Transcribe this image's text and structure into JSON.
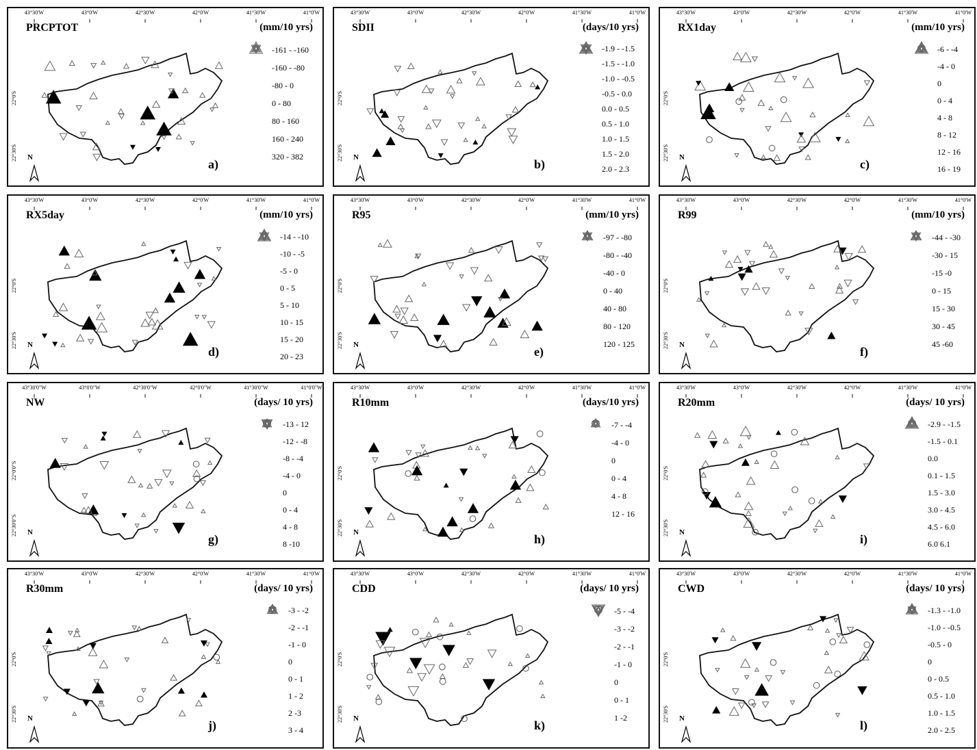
{
  "lon_labels": [
    "43°30'W",
    "43°0'W",
    "42°30'W",
    "42°0'W",
    "41°30'W",
    "41°0'W"
  ],
  "lon_labels_g": [
    "43°30'0\"W",
    "43°0'0\"W",
    "42°30'0\"W",
    "42°0'0\"W",
    "41°30'0\"W",
    "41°0'0\"W"
  ],
  "lat_labels": [
    "22°0'S",
    "22°30'S"
  ],
  "lat_labels_g": [
    "22°0'0\"S",
    "22°30'0\"S"
  ],
  "north_label": "N",
  "panels": [
    {
      "id": "a",
      "title": "PRCPTOT",
      "units": "(mm/10 yrs)",
      "label": "a)",
      "legend": [
        {
          "dir": "down",
          "size": 7,
          "text": "-161 - -160"
        },
        {
          "dir": "down",
          "size": 5,
          "text": "-160 - -80"
        },
        {
          "dir": "down",
          "size": 3,
          "text": "-80 - 0"
        },
        {
          "dir": "up",
          "size": 3,
          "text": "0 - 80"
        },
        {
          "dir": "up",
          "size": 5,
          "text": "80 - 160"
        },
        {
          "dir": "up",
          "size": 7,
          "text": "160 - 240"
        },
        {
          "dir": "up",
          "size": 10,
          "text": "320 - 382"
        }
      ]
    },
    {
      "id": "b",
      "title": "SDII",
      "units": "(days/10 yrs)",
      "label": "b)",
      "legend": [
        {
          "dir": "down",
          "size": 8,
          "text": "-1.9 - -1.5"
        },
        {
          "dir": "down",
          "size": 6,
          "text": "-1.5 - -1.0"
        },
        {
          "dir": "down",
          "size": 5,
          "text": "-1.0 - -0.5"
        },
        {
          "dir": "down",
          "size": 3,
          "text": "-0.5 - 0.0"
        },
        {
          "dir": "up",
          "size": 3,
          "text": "0.0 - 0.5"
        },
        {
          "dir": "up",
          "size": 5,
          "text": "0.5 - 1.0"
        },
        {
          "dir": "up",
          "size": 6,
          "text": "1.0 - 1.5"
        },
        {
          "dir": "up",
          "size": 8,
          "text": "1.5 - 2.0"
        },
        {
          "dir": "up",
          "size": 10,
          "text": "2.0 - 2.3"
        }
      ]
    },
    {
      "id": "c",
      "title": "RX1day",
      "units": "(mm/10 yrs)",
      "label": "c)",
      "legend": [
        {
          "dir": "down",
          "size": 5,
          "text": "-6 - -4"
        },
        {
          "dir": "down",
          "size": 3,
          "text": "-4 - 0"
        },
        {
          "dir": "zero",
          "size": 6,
          "text": "0"
        },
        {
          "dir": "up",
          "size": 3,
          "text": "0 - 4"
        },
        {
          "dir": "up",
          "size": 5,
          "text": "4 - 8"
        },
        {
          "dir": "up",
          "size": 6,
          "text": "8 - 12"
        },
        {
          "dir": "up",
          "size": 8,
          "text": "12 - 16"
        },
        {
          "dir": "up",
          "size": 10,
          "text": "16 - 19"
        }
      ]
    },
    {
      "id": "d",
      "title": "RX5day",
      "units": "(mm/10 yrs)",
      "label": "d)",
      "legend": [
        {
          "dir": "down",
          "size": 7,
          "text": "-14 - -10"
        },
        {
          "dir": "down",
          "size": 5,
          "text": "-10 - -5"
        },
        {
          "dir": "down",
          "size": 3,
          "text": "-5 - 0"
        },
        {
          "dir": "up",
          "size": 3,
          "text": "0 - 5"
        },
        {
          "dir": "up",
          "size": 5,
          "text": "5 - 10"
        },
        {
          "dir": "up",
          "size": 7,
          "text": "10 - 15"
        },
        {
          "dir": "up",
          "size": 8,
          "text": "15 - 20"
        },
        {
          "dir": "up",
          "size": 10,
          "text": "20 - 23"
        }
      ]
    },
    {
      "id": "e",
      "title": "R95",
      "units": "(mm/10 yrs)",
      "label": "e)",
      "legend": [
        {
          "dir": "down",
          "size": 7,
          "text": "-97 - -80"
        },
        {
          "dir": "down",
          "size": 5,
          "text": "-80 - -40"
        },
        {
          "dir": "down",
          "size": 3,
          "text": "-40 - 0"
        },
        {
          "dir": "up",
          "size": 3,
          "text": "0 - 40"
        },
        {
          "dir": "up",
          "size": 5,
          "text": "40 - 80"
        },
        {
          "dir": "up",
          "size": 7,
          "text": "80 - 120"
        },
        {
          "dir": "up",
          "size": 8,
          "text": "120 - 125"
        }
      ]
    },
    {
      "id": "f",
      "title": "R99",
      "units": "(mm/10 yrs)",
      "label": "f)",
      "legend": [
        {
          "dir": "down",
          "size": 7,
          "text": "-44 - -30"
        },
        {
          "dir": "down",
          "size": 5,
          "text": "-30 - 15"
        },
        {
          "dir": "down",
          "size": 3,
          "text": "-15 -0"
        },
        {
          "dir": "up",
          "size": 3,
          "text": "0 - 15"
        },
        {
          "dir": "up",
          "size": 5,
          "text": "15 - 30"
        },
        {
          "dir": "up",
          "size": 7,
          "text": "30 - 45"
        },
        {
          "dir": "up",
          "size": 8,
          "text": "45 -60"
        }
      ]
    },
    {
      "id": "g",
      "title": "NW",
      "units": "(days/ 10 yrs)",
      "label": "g)",
      "legend": [
        {
          "dir": "down",
          "size": 8,
          "text": "-13 - 12"
        },
        {
          "dir": "down",
          "size": 7,
          "text": "-12 - -8"
        },
        {
          "dir": "down",
          "size": 5,
          "text": "-8 - -4"
        },
        {
          "dir": "down",
          "size": 3,
          "text": "-4 - 0"
        },
        {
          "dir": "zero",
          "size": 6,
          "text": "0"
        },
        {
          "dir": "up",
          "size": 3,
          "text": "0 - 4"
        },
        {
          "dir": "up",
          "size": 5,
          "text": "4 - 8"
        },
        {
          "dir": "up",
          "size": 7,
          "text": "8 -10"
        }
      ]
    },
    {
      "id": "h",
      "title": "R10mm",
      "units": "(days/10 yrs)",
      "label": "h)",
      "legend": [
        {
          "dir": "down",
          "size": 5,
          "text": "-7 - -4"
        },
        {
          "dir": "down",
          "size": 3,
          "text": "-4 - 0"
        },
        {
          "dir": "zero",
          "size": 6,
          "text": "0"
        },
        {
          "dir": "up",
          "size": 3,
          "text": "0 - 4"
        },
        {
          "dir": "up",
          "size": 5,
          "text": "4 - 8"
        },
        {
          "dir": "up",
          "size": 7,
          "text": "12 - 16"
        }
      ]
    },
    {
      "id": "i",
      "title": "R20mm",
      "units": "(days/ 10 yrs)",
      "label": "i)",
      "legend": [
        {
          "dir": "down",
          "size": 5,
          "text": "-2.9 - -1.5"
        },
        {
          "dir": "down",
          "size": 3,
          "text": "-1.5 - 0.1"
        },
        {
          "dir": "zero",
          "size": 6,
          "text": "0.0"
        },
        {
          "dir": "up",
          "size": 3,
          "text": "0.1 - 1.5"
        },
        {
          "dir": "up",
          "size": 5,
          "text": "1.5 - 3.0"
        },
        {
          "dir": "up",
          "size": 7,
          "text": "3.0 - 4.5"
        },
        {
          "dir": "up",
          "size": 8,
          "text": "4.5 - 6.0"
        },
        {
          "dir": "up",
          "size": 10,
          "text": "6.0 6.1"
        }
      ]
    },
    {
      "id": "j",
      "title": "R30mm",
      "units": "(days/ 10 yrs)",
      "label": "j)",
      "legend": [
        {
          "dir": "down",
          "size": 5,
          "text": "-3 - -2"
        },
        {
          "dir": "down",
          "size": 4,
          "text": "-2 - -1"
        },
        {
          "dir": "down",
          "size": 3,
          "text": "-1 - 0"
        },
        {
          "dir": "zero",
          "size": 6,
          "text": "0"
        },
        {
          "dir": "up",
          "size": 3,
          "text": "0 - 1"
        },
        {
          "dir": "up",
          "size": 4,
          "text": "1 - 2"
        },
        {
          "dir": "up",
          "size": 6,
          "text": "2 -3"
        },
        {
          "dir": "up",
          "size": 8,
          "text": "3 - 4"
        }
      ]
    },
    {
      "id": "k",
      "title": "CDD",
      "units": "(days/ 10 yrs)",
      "label": "k)",
      "legend": [
        {
          "dir": "down",
          "size": 10,
          "text": "-5 - -4"
        },
        {
          "dir": "down",
          "size": 8,
          "text": "-3 - -2"
        },
        {
          "dir": "down",
          "size": 6,
          "text": "-2 - -1"
        },
        {
          "dir": "down",
          "size": 3,
          "text": "-1 - 0"
        },
        {
          "dir": "zero",
          "size": 6,
          "text": "0"
        },
        {
          "dir": "up",
          "size": 3,
          "text": "0 - 1"
        },
        {
          "dir": "up",
          "size": 5,
          "text": "1 -2"
        }
      ]
    },
    {
      "id": "l",
      "title": "CWD",
      "units": "(days/ 10 yrs)",
      "label": "l)",
      "legend": [
        {
          "dir": "down",
          "size": 6,
          "text": "-1.3 - -1.0"
        },
        {
          "dir": "down",
          "size": 4,
          "text": "-1.0 - -0.5"
        },
        {
          "dir": "down",
          "size": 3,
          "text": "-0.5 - 0"
        },
        {
          "dir": "zero",
          "size": 6,
          "text": "0"
        },
        {
          "dir": "up",
          "size": 3,
          "text": "0 - 0.5"
        },
        {
          "dir": "up",
          "size": 5,
          "text": "0.5 - 1.0"
        },
        {
          "dir": "up",
          "size": 7,
          "text": "1.0 - 1.5"
        },
        {
          "dir": "up",
          "size": 9,
          "text": "2.0 - 2.5"
        }
      ]
    }
  ]
}
